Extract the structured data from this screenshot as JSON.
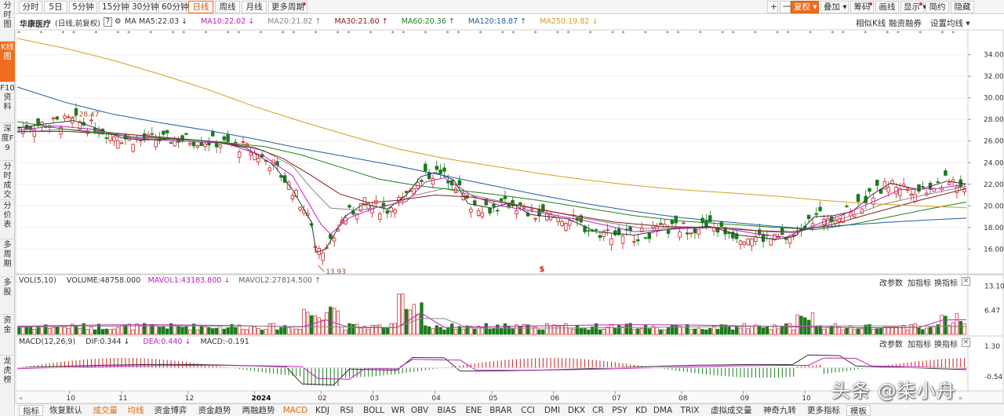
{
  "sidenav": [
    {
      "label": "分时图",
      "active": false
    },
    {
      "label": "K线图",
      "active": true
    },
    {
      "label": "F10资料",
      "active": false
    },
    {
      "label": "深度F9",
      "active": false
    },
    {
      "label": "分时成交",
      "active": false
    },
    {
      "label": "分价表",
      "active": false
    },
    {
      "label": "多周期",
      "active": false
    },
    {
      "label": "多股",
      "active": false
    },
    {
      "label": "资金",
      "active": false
    },
    {
      "label": "龙虎榜",
      "active": false
    }
  ],
  "toolbar": {
    "periods": [
      "分时",
      "5日",
      "5分钟",
      "15分钟",
      "30分钟",
      "60分钟",
      "日线",
      "周线",
      "月线",
      "更多周期"
    ],
    "active_period": "日线",
    "zoom_in": "+",
    "zoom_out": "一",
    "right": [
      "复权",
      "叠加",
      "筹码",
      "画线",
      "显示",
      "简约",
      "隐藏"
    ]
  },
  "stock": {
    "name": "华康医疗",
    "mode": "(日线,前复权)",
    "help": "?",
    "settings": "⚙"
  },
  "ma": [
    {
      "label": "MA",
      "value": "",
      "color": "#333333"
    },
    {
      "label": "MA5",
      "value": "22.03",
      "color": "#333333",
      "arrow": "↓"
    },
    {
      "label": "MA10",
      "value": "22.02",
      "color": "#c020c0",
      "arrow": "↓"
    },
    {
      "label": "MA20",
      "value": "21.82",
      "color": "#888888",
      "arrow": "↑"
    },
    {
      "label": "MA30",
      "value": "21.60",
      "color": "#8b1a1a",
      "arrow": "↑"
    },
    {
      "label": "MA60",
      "value": "20.36",
      "color": "#208020",
      "arrow": "↑"
    },
    {
      "label": "MA120",
      "value": "18.87",
      "color": "#2060a0",
      "arrow": "↑"
    },
    {
      "label": "MA250",
      "value": "19.82",
      "color": "#d4a020",
      "arrow": "↓"
    }
  ],
  "right_buttons": [
    "相似K线",
    "融资融券",
    "设置均线"
  ],
  "price_axis": {
    "ticks": [
      "34.00",
      "32.00",
      "30.00",
      "28.00",
      "26.00",
      "24.00",
      "22.00",
      "20.00",
      "18.00",
      "16.00"
    ],
    "min": 14.5,
    "max": 35.5
  },
  "annotations": {
    "high": "28.47",
    "low": "13.93",
    "marker": "$"
  },
  "date_axis": [
    {
      "label": "10",
      "frac": 0.055
    },
    {
      "label": "11",
      "frac": 0.11
    },
    {
      "label": "12",
      "frac": 0.18
    },
    {
      "label": "2024",
      "frac": 0.25
    },
    {
      "label": "02",
      "frac": 0.32
    },
    {
      "label": "03",
      "frac": 0.375
    },
    {
      "label": "04",
      "frac": 0.44
    },
    {
      "label": "05",
      "frac": 0.5
    },
    {
      "label": "06",
      "frac": 0.565
    },
    {
      "label": "07",
      "frac": 0.63
    },
    {
      "label": "08",
      "frac": 0.7
    },
    {
      "label": "09",
      "frac": 0.765
    },
    {
      "label": "10",
      "frac": 0.83
    }
  ],
  "price_series": {
    "ma5": [
      [
        0,
        27.2
      ],
      [
        0.03,
        27.6
      ],
      [
        0.06,
        27.9
      ],
      [
        0.08,
        27.3
      ],
      [
        0.11,
        26.3
      ],
      [
        0.13,
        26.1
      ],
      [
        0.17,
        26.2
      ],
      [
        0.21,
        25.9
      ],
      [
        0.24,
        25.4
      ],
      [
        0.27,
        23.8
      ],
      [
        0.29,
        21.5
      ],
      [
        0.31,
        18.5
      ],
      [
        0.315,
        15.7
      ],
      [
        0.325,
        16.0
      ],
      [
        0.345,
        19.0
      ],
      [
        0.365,
        20.2
      ],
      [
        0.39,
        19.7
      ],
      [
        0.41,
        21.0
      ],
      [
        0.425,
        22.7
      ],
      [
        0.44,
        23.1
      ],
      [
        0.46,
        22.4
      ],
      [
        0.475,
        20.2
      ],
      [
        0.5,
        19.8
      ],
      [
        0.52,
        20.3
      ],
      [
        0.54,
        19.2
      ],
      [
        0.58,
        18.8
      ],
      [
        0.61,
        17.6
      ],
      [
        0.65,
        17.3
      ],
      [
        0.69,
        17.9
      ],
      [
        0.73,
        18.1
      ],
      [
        0.76,
        17.3
      ],
      [
        0.8,
        16.9
      ],
      [
        0.82,
        17.2
      ],
      [
        0.84,
        19.0
      ],
      [
        0.86,
        19.1
      ],
      [
        0.88,
        19.5
      ],
      [
        0.9,
        21.0
      ],
      [
        0.92,
        22.1
      ],
      [
        0.95,
        21.5
      ],
      [
        0.98,
        22.3
      ],
      [
        1,
        22.03
      ]
    ],
    "ma10": [
      [
        0,
        27.0
      ],
      [
        0.04,
        27.4
      ],
      [
        0.08,
        27.1
      ],
      [
        0.12,
        26.3
      ],
      [
        0.17,
        26.0
      ],
      [
        0.22,
        25.8
      ],
      [
        0.26,
        24.6
      ],
      [
        0.29,
        22.8
      ],
      [
        0.32,
        18.3
      ],
      [
        0.33,
        17.4
      ],
      [
        0.35,
        18.9
      ],
      [
        0.38,
        19.9
      ],
      [
        0.41,
        20.4
      ],
      [
        0.43,
        22.2
      ],
      [
        0.45,
        22.6
      ],
      [
        0.48,
        20.9
      ],
      [
        0.51,
        20.0
      ],
      [
        0.55,
        19.4
      ],
      [
        0.6,
        18.6
      ],
      [
        0.65,
        17.6
      ],
      [
        0.7,
        17.9
      ],
      [
        0.74,
        18.0
      ],
      [
        0.78,
        17.4
      ],
      [
        0.81,
        17.1
      ],
      [
        0.84,
        18.2
      ],
      [
        0.87,
        19.2
      ],
      [
        0.9,
        20.3
      ],
      [
        0.93,
        21.5
      ],
      [
        0.97,
        21.6
      ],
      [
        1,
        22.02
      ]
    ],
    "ma20": [
      [
        0,
        26.8
      ],
      [
        0.05,
        27.1
      ],
      [
        0.1,
        26.8
      ],
      [
        0.15,
        26.3
      ],
      [
        0.22,
        25.9
      ],
      [
        0.26,
        25.1
      ],
      [
        0.29,
        23.7
      ],
      [
        0.31,
        21.6
      ],
      [
        0.33,
        19.8
      ],
      [
        0.36,
        19.6
      ],
      [
        0.39,
        20.0
      ],
      [
        0.42,
        21.0
      ],
      [
        0.45,
        21.6
      ],
      [
        0.5,
        20.6
      ],
      [
        0.55,
        19.7
      ],
      [
        0.6,
        18.8
      ],
      [
        0.66,
        17.9
      ],
      [
        0.7,
        18.0
      ],
      [
        0.75,
        18.0
      ],
      [
        0.79,
        17.6
      ],
      [
        0.82,
        17.5
      ],
      [
        0.85,
        18.3
      ],
      [
        0.88,
        19.1
      ],
      [
        0.91,
        20.1
      ],
      [
        0.95,
        20.9
      ],
      [
        1,
        21.82
      ]
    ],
    "ma30": [
      [
        0,
        26.9
      ],
      [
        0.05,
        26.9
      ],
      [
        0.12,
        26.6
      ],
      [
        0.2,
        26.0
      ],
      [
        0.25,
        25.4
      ],
      [
        0.28,
        24.4
      ],
      [
        0.31,
        22.8
      ],
      [
        0.34,
        21.1
      ],
      [
        0.37,
        20.3
      ],
      [
        0.4,
        20.5
      ],
      [
        0.44,
        21.0
      ],
      [
        0.48,
        20.8
      ],
      [
        0.53,
        20.0
      ],
      [
        0.58,
        19.2
      ],
      [
        0.63,
        18.5
      ],
      [
        0.68,
        18.1
      ],
      [
        0.73,
        18.0
      ],
      [
        0.78,
        17.7
      ],
      [
        0.82,
        17.6
      ],
      [
        0.86,
        18.3
      ],
      [
        0.9,
        19.3
      ],
      [
        0.95,
        20.5
      ],
      [
        1,
        21.6
      ]
    ],
    "ma60": [
      [
        0,
        27.8
      ],
      [
        0.05,
        27.1
      ],
      [
        0.12,
        26.4
      ],
      [
        0.2,
        26.0
      ],
      [
        0.26,
        25.5
      ],
      [
        0.3,
        24.7
      ],
      [
        0.34,
        23.6
      ],
      [
        0.38,
        22.5
      ],
      [
        0.42,
        21.9
      ],
      [
        0.46,
        21.5
      ],
      [
        0.5,
        21.1
      ],
      [
        0.55,
        20.5
      ],
      [
        0.6,
        19.8
      ],
      [
        0.65,
        19.1
      ],
      [
        0.7,
        18.6
      ],
      [
        0.75,
        18.3
      ],
      [
        0.8,
        18.0
      ],
      [
        0.84,
        17.8
      ],
      [
        0.88,
        18.3
      ],
      [
        0.92,
        19.0
      ],
      [
        0.96,
        19.7
      ],
      [
        1,
        20.36
      ]
    ],
    "ma120": [
      [
        0,
        31.0
      ],
      [
        0.05,
        29.6
      ],
      [
        0.1,
        28.5
      ],
      [
        0.15,
        27.7
      ],
      [
        0.2,
        27.0
      ],
      [
        0.25,
        26.2
      ],
      [
        0.3,
        25.3
      ],
      [
        0.35,
        24.5
      ],
      [
        0.4,
        23.7
      ],
      [
        0.45,
        22.8
      ],
      [
        0.5,
        21.9
      ],
      [
        0.55,
        21.0
      ],
      [
        0.6,
        20.2
      ],
      [
        0.65,
        19.5
      ],
      [
        0.7,
        18.9
      ],
      [
        0.75,
        18.5
      ],
      [
        0.8,
        18.1
      ],
      [
        0.83,
        17.9
      ],
      [
        0.87,
        18.2
      ],
      [
        0.92,
        18.5
      ],
      [
        0.96,
        18.7
      ],
      [
        1,
        18.87
      ]
    ],
    "ma250": [
      [
        0,
        35.5
      ],
      [
        0.05,
        34.6
      ],
      [
        0.1,
        33.5
      ],
      [
        0.15,
        32.2
      ],
      [
        0.2,
        30.8
      ],
      [
        0.25,
        29.2
      ],
      [
        0.3,
        27.8
      ],
      [
        0.35,
        26.5
      ],
      [
        0.4,
        25.3
      ],
      [
        0.45,
        24.4
      ],
      [
        0.5,
        23.7
      ],
      [
        0.55,
        23.0
      ],
      [
        0.6,
        22.4
      ],
      [
        0.65,
        21.9
      ],
      [
        0.7,
        21.5
      ],
      [
        0.75,
        21.2
      ],
      [
        0.8,
        20.9
      ],
      [
        0.85,
        20.5
      ],
      [
        0.9,
        20.2
      ],
      [
        0.95,
        20.0
      ],
      [
        1,
        19.82
      ]
    ]
  },
  "volume": {
    "label": "VOL(5,10)",
    "volume_label": "VOLUME",
    "volume_value": "48758.000",
    "mavol1_label": "MAVOL1",
    "mavol1_value": "43183.800",
    "mavol2_label": "MAVOL2",
    "mavol2_value": "27814.500",
    "axis": [
      "13.10",
      "6.47"
    ],
    "scale_max": 13.6,
    "buttons": [
      "改参数",
      "加指标",
      "换指标"
    ],
    "close": "×"
  },
  "macd": {
    "label": "MACD(12,26,9)",
    "dif_label": "DIF",
    "dif_value": "0.344",
    "dea_label": "DEA",
    "dea_value": "0.440",
    "macd_label": "MACD",
    "macd_value": "-0.191",
    "axis": [
      "1.30",
      "-0.54"
    ],
    "scale_min": -1.3,
    "scale_max": 1.5,
    "buttons": [
      "改参数",
      "加指标",
      "换指标"
    ],
    "close": "×"
  },
  "bottombar": {
    "tabs": [
      "指标",
      "恢复默认",
      "成交量",
      "均线",
      "资金博弈",
      "资金趋势",
      "两融趋势",
      "MACD",
      "KDJ",
      "RSI",
      "BOLL",
      "WR",
      "OBV",
      "BIAS",
      "ENE",
      "BRAR",
      "CCI",
      "DMI",
      "DKX",
      "CR",
      "PSY",
      "KD",
      "DMA",
      "TRIX",
      "虚拟成交量",
      "神奇九转",
      "更多指标",
      "模板"
    ],
    "orange": [
      "成交量",
      "均线",
      "MACD"
    ]
  },
  "watermark": "头条 @柒小舟"
}
